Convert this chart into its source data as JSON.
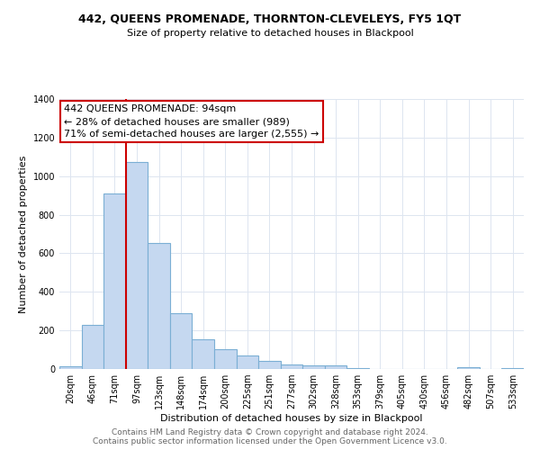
{
  "title": "442, QUEENS PROMENADE, THORNTON-CLEVELEYS, FY5 1QT",
  "subtitle": "Size of property relative to detached houses in Blackpool",
  "xlabel": "Distribution of detached houses by size in Blackpool",
  "ylabel": "Number of detached properties",
  "footnote1": "Contains HM Land Registry data © Crown copyright and database right 2024.",
  "footnote2": "Contains public sector information licensed under the Open Government Licence v3.0.",
  "bar_labels": [
    "20sqm",
    "46sqm",
    "71sqm",
    "97sqm",
    "123sqm",
    "148sqm",
    "174sqm",
    "200sqm",
    "225sqm",
    "251sqm",
    "277sqm",
    "302sqm",
    "328sqm",
    "353sqm",
    "379sqm",
    "405sqm",
    "430sqm",
    "456sqm",
    "482sqm",
    "507sqm",
    "533sqm"
  ],
  "bar_values": [
    15,
    230,
    910,
    1075,
    655,
    290,
    155,
    105,
    70,
    40,
    25,
    20,
    18,
    5,
    0,
    0,
    0,
    0,
    10,
    0,
    5
  ],
  "bar_color": "#c5d8f0",
  "bar_edgecolor": "#7bafd4",
  "vline_index": 2.5,
  "vline_color": "#cc0000",
  "ylim": [
    0,
    1400
  ],
  "yticks": [
    0,
    200,
    400,
    600,
    800,
    1000,
    1200,
    1400
  ],
  "annotation_line1": "442 QUEENS PROMENADE: 94sqm",
  "annotation_line2": "← 28% of detached houses are smaller (989)",
  "annotation_line3": "71% of semi-detached houses are larger (2,555) →",
  "annotation_box_color": "#ffffff",
  "annotation_box_edgecolor": "#cc0000",
  "grid_color": "#dde5f0",
  "background_color": "#ffffff",
  "title_fontsize": 9,
  "subtitle_fontsize": 8,
  "axis_label_fontsize": 8,
  "tick_fontsize": 7,
  "annotation_fontsize": 8,
  "footnote_fontsize": 6.5,
  "footnote_color": "#666666"
}
